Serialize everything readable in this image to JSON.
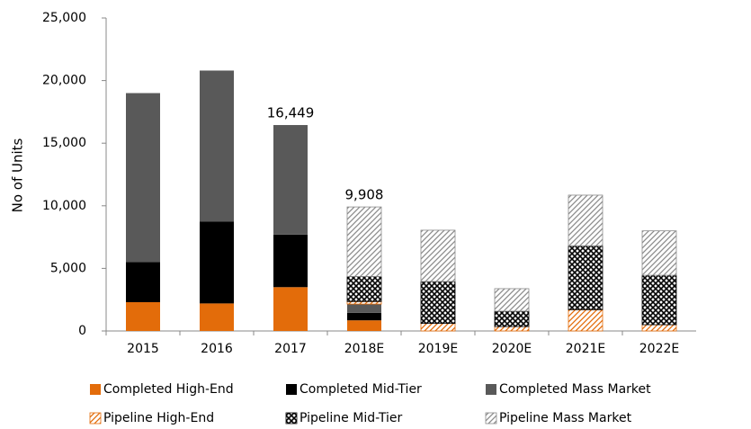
{
  "chart_data": {
    "type": "stacked_bar",
    "y_label": "No of Units",
    "categories": [
      "2015",
      "2016",
      "2017",
      "2018E",
      "2019E",
      "2020E",
      "2021E",
      "2022E"
    ],
    "series": [
      {
        "name": "Completed High-End",
        "color": "#e36c0a",
        "pattern": "solid",
        "values": [
          2300,
          2200,
          3500,
          850,
          null,
          null,
          null,
          null
        ]
      },
      {
        "name": "Completed Mid-Tier",
        "color": "#000000",
        "pattern": "solid",
        "values": [
          3200,
          6550,
          4200,
          600,
          null,
          null,
          null,
          null
        ]
      },
      {
        "name": "Completed Mass Market",
        "color": "#595959",
        "pattern": "solid",
        "values": [
          13500,
          12050,
          8749,
          700,
          null,
          null,
          null,
          null
        ]
      },
      {
        "name": "Pipeline High-End",
        "color": "#e36c0a",
        "pattern": "hatch",
        "values": [
          null,
          null,
          null,
          200,
          600,
          350,
          1700,
          500
        ]
      },
      {
        "name": "Pipeline Mid-Tier",
        "color": "#000000",
        "pattern": "cross",
        "values": [
          null,
          null,
          null,
          2000,
          3350,
          1230,
          5100,
          3950
        ]
      },
      {
        "name": "Pipeline Mass Market",
        "color": "#8c8c8c",
        "pattern": "hatch",
        "values": [
          null,
          null,
          null,
          5558,
          4100,
          1800,
          4050,
          3550
        ]
      }
    ],
    "totals": [
      null,
      null,
      16449,
      9908,
      null,
      null,
      null,
      null
    ],
    "total_labels": [
      null,
      null,
      "16,449",
      "9,908",
      null,
      null,
      null,
      null
    ],
    "ylim": [
      0,
      25000
    ],
    "yticks": [
      {
        "value": 0,
        "label": "0"
      },
      {
        "value": 5000,
        "label": "5,000"
      },
      {
        "value": 10000,
        "label": "10,000"
      },
      {
        "value": 15000,
        "label": "15,000"
      },
      {
        "value": 20000,
        "label": "20,000"
      },
      {
        "value": 25000,
        "label": "25,000"
      }
    ],
    "grid": false,
    "legend": "bottom"
  }
}
